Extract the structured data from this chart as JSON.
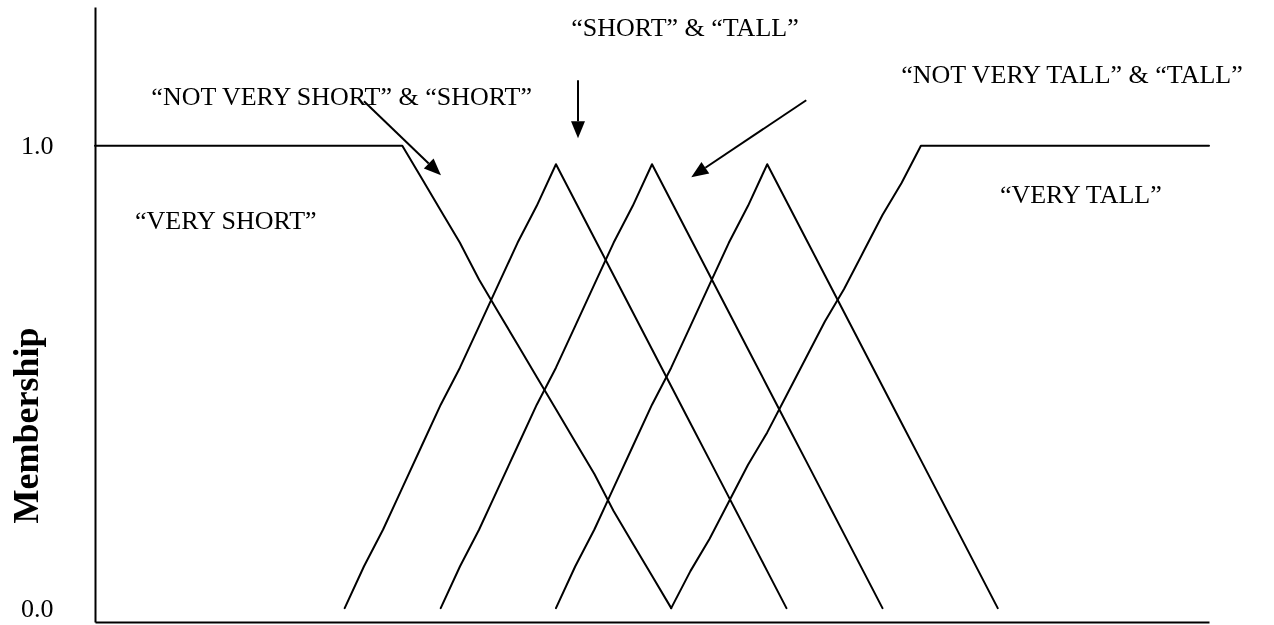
{
  "chart_data": {
    "type": "line",
    "ylabel": "Membership",
    "categories": [
      null,
      null,
      null,
      null,
      null,
      null,
      null,
      null,
      null,
      null,
      null,
      null,
      null,
      null,
      null,
      null,
      null,
      null,
      null,
      null,
      null,
      null,
      null,
      null,
      null,
      null,
      null,
      null,
      null,
      null,
      null,
      null,
      null,
      null,
      null,
      null,
      null,
      null,
      null,
      null,
      null,
      null,
      null,
      null,
      null,
      null,
      null,
      null,
      null,
      null,
      null,
      null,
      null,
      null,
      null,
      null,
      null,
      null,
      null
    ],
    "series": [
      {
        "name": "“VERY SHORT”",
        "color": "#000000",
        "values": [
          1,
          1,
          1,
          1,
          1,
          1,
          1,
          1,
          1,
          1,
          1,
          1,
          1,
          1,
          1,
          1,
          1,
          0.93,
          0.86,
          0.79,
          0.71,
          0.64,
          0.57,
          0.5,
          0.43,
          0.36,
          0.29,
          0.21,
          0.14,
          0.07,
          0,
          null,
          null,
          null,
          null,
          null,
          null,
          null,
          null,
          null,
          null,
          null,
          null,
          null,
          null,
          null,
          null,
          null,
          null,
          null,
          null,
          null,
          null,
          null,
          null,
          null,
          null,
          null,
          null
        ]
      },
      {
        "color": "#000000",
        "values": [
          null,
          null,
          null,
          null,
          null,
          null,
          null,
          null,
          null,
          null,
          null,
          null,
          null,
          0,
          0.09,
          0.17,
          0.26,
          0.35,
          0.44,
          0.52,
          0.61,
          0.7,
          0.79,
          0.87,
          0.96,
          0.88,
          0.8,
          0.72,
          0.64,
          0.56,
          0.48,
          0.4,
          0.32,
          0.24,
          0.16,
          0.08,
          0,
          null,
          null,
          null,
          null,
          null,
          null,
          null,
          null,
          null,
          null,
          null,
          null,
          null,
          null,
          null,
          null,
          null,
          null,
          null,
          null,
          null,
          null
        ]
      },
      {
        "color": "#000000",
        "values": [
          null,
          null,
          null,
          null,
          null,
          null,
          null,
          null,
          null,
          null,
          null,
          null,
          null,
          null,
          null,
          null,
          null,
          null,
          0,
          0.09,
          0.17,
          0.26,
          0.35,
          0.44,
          0.52,
          0.61,
          0.7,
          0.79,
          0.87,
          0.96,
          0.88,
          0.8,
          0.72,
          0.64,
          0.56,
          0.48,
          0.4,
          0.32,
          0.24,
          0.16,
          0.08,
          0,
          null,
          null,
          null,
          null,
          null,
          null,
          null,
          null,
          null,
          null,
          null,
          null,
          null,
          null,
          null,
          null,
          null
        ]
      },
      {
        "color": "#000000",
        "values": [
          null,
          null,
          null,
          null,
          null,
          null,
          null,
          null,
          null,
          null,
          null,
          null,
          null,
          null,
          null,
          null,
          null,
          null,
          null,
          null,
          null,
          null,
          null,
          null,
          0,
          0.09,
          0.17,
          0.26,
          0.35,
          0.44,
          0.52,
          0.61,
          0.7,
          0.79,
          0.87,
          0.96,
          0.88,
          0.8,
          0.72,
          0.64,
          0.56,
          0.48,
          0.4,
          0.32,
          0.24,
          0.16,
          0.08,
          0,
          null,
          null,
          null,
          null,
          null,
          null,
          null,
          null,
          null,
          null,
          null
        ]
      },
      {
        "name": "“VERY TALL”",
        "color": "#000000",
        "values": [
          null,
          null,
          null,
          null,
          null,
          null,
          null,
          null,
          null,
          null,
          null,
          null,
          null,
          null,
          null,
          null,
          null,
          null,
          null,
          null,
          null,
          null,
          null,
          null,
          null,
          null,
          null,
          null,
          null,
          null,
          0,
          0.08,
          0.15,
          0.23,
          0.31,
          0.38,
          0.46,
          0.54,
          0.62,
          0.69,
          0.77,
          0.85,
          0.92,
          1,
          1,
          1,
          1,
          1,
          1,
          1,
          1,
          1,
          1,
          1,
          1,
          1,
          1,
          1,
          1
        ]
      }
    ],
    "annotations": [
      "“NOT VERY SHORT” & “SHORT”",
      "“SHORT” & “TALL”",
      "“NOT VERY TALL” & “TALL”"
    ],
    "ylim": [
      -0.03,
      1.3
    ],
    "yticks": [
      {
        "value": 0,
        "label": "0.0"
      },
      {
        "value": 1,
        "label": "1.0"
      }
    ],
    "tick_labels": "y",
    "line_style": "solid"
  }
}
